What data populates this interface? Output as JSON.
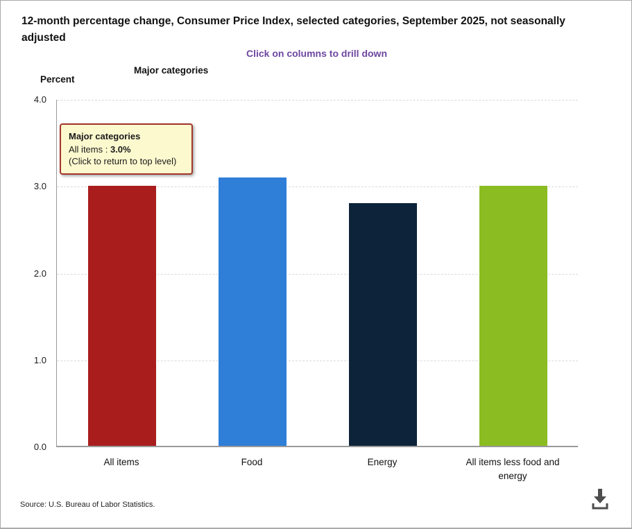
{
  "header": {
    "title": "12-month percentage change, Consumer Price Index, selected categories, September 2025, not seasonally adjusted",
    "subtitle": "Click on columns to drill down",
    "subtitle_color": "#6E46A0"
  },
  "axes": {
    "x_title": "Major categories",
    "y_title": "Percent"
  },
  "tooltip": {
    "heading": "Major categories",
    "item_label": "All items :",
    "item_value": "3.0%",
    "note": "(Click to return to top level)",
    "bg_color": "#FDF9CF",
    "border_color": "#A2342B"
  },
  "chart_data": {
    "type": "bar",
    "title": "12-month percentage change, Consumer Price Index, selected categories, September 2025, not seasonally adjusted",
    "xlabel": "Major categories",
    "ylabel": "Percent",
    "categories": [
      "All items",
      "Food",
      "Energy",
      "All items less food and energy"
    ],
    "values": [
      3.0,
      3.1,
      2.8,
      3.0
    ],
    "bar_colors": [
      "#A91D1D",
      "#2F7ED8",
      "#0D233A",
      "#8BBC21"
    ],
    "ylim": [
      0,
      4
    ],
    "yticks": [
      0,
      1,
      2,
      3,
      4
    ],
    "ytick_labels": [
      "0.0",
      "1.0",
      "2.0",
      "3.0",
      "4.0"
    ],
    "grid": "horizontal dashed",
    "legend": "none"
  },
  "footer": {
    "source": "Source: U.S. Bureau of Labor Statistics.",
    "download_icon": "download-icon",
    "icon_color": "#4D4D4D"
  }
}
